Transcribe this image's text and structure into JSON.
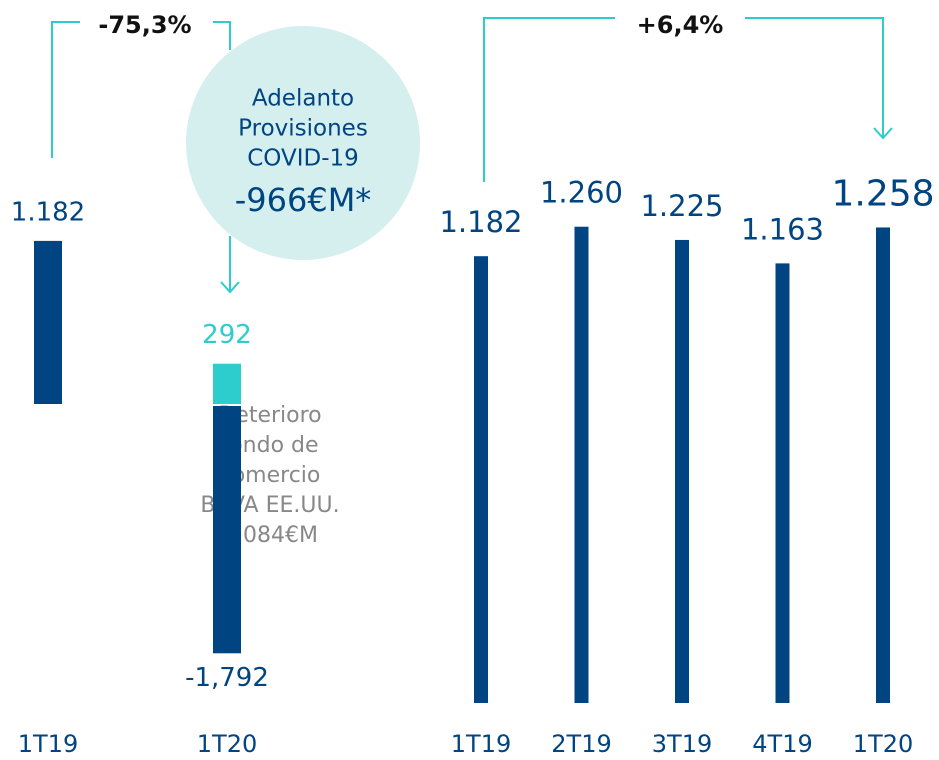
{
  "chart_data": [
    {
      "type": "bar",
      "categories": [
        "1T19",
        "1T20"
      ],
      "series": [
        {
          "color": "#004481",
          "values": [
            1182,
            -1792
          ],
          "value_labels": [
            "1.182",
            "-1,792"
          ]
        },
        {
          "color": "#2dcccd",
          "values": [
            null,
            292
          ],
          "value_labels": [
            null,
            "292"
          ]
        }
      ],
      "change": "-75,3%",
      "bubble": {
        "lines": [
          "Adelanto",
          "Provisiones",
          "COVID-19"
        ],
        "amount": "-966€M*"
      },
      "note_lines": [
        "Deterioro",
        "fondo de",
        "comercio",
        "BBVA EE.UU.",
        "2.084€M"
      ]
    },
    {
      "type": "bar",
      "categories": [
        "1T19",
        "2T19",
        "3T19",
        "4T19",
        "1T20"
      ],
      "values": [
        1182,
        1260,
        1225,
        1163,
        1258
      ],
      "value_labels": [
        "1.182",
        "1.260",
        "1.225",
        "1.163",
        "1.258"
      ],
      "color": "#004481",
      "change": "+6,4%"
    }
  ]
}
